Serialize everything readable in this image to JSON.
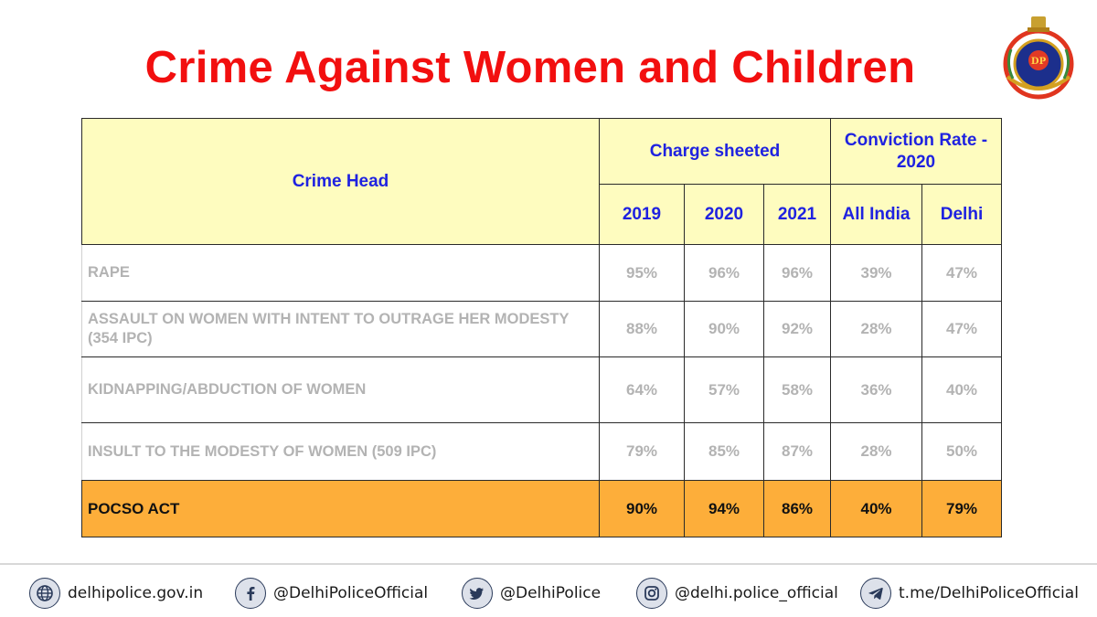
{
  "title": "Crime Against Women and Children",
  "table": {
    "header": {
      "crime_head": "Crime Head",
      "charge_sheeted": "Charge sheeted",
      "conviction_rate": "Conviction Rate - 2020",
      "years": [
        "2019",
        "2020",
        "2021"
      ],
      "conviction_cols": [
        "All India",
        "Delhi"
      ]
    },
    "rows": [
      {
        "crime": "RAPE",
        "values": [
          "95%",
          "96%",
          "96%",
          "39%",
          "47%"
        ]
      },
      {
        "crime": "ASSAULT ON WOMEN WITH INTENT TO OUTRAGE HER MODESTY (354 IPC)",
        "values": [
          "88%",
          "90%",
          "92%",
          "28%",
          "47%"
        ]
      },
      {
        "crime": "KIDNAPPING/ABDUCTION OF WOMEN",
        "values": [
          "64%",
          "57%",
          "58%",
          "36%",
          "40%"
        ]
      },
      {
        "crime": "INSULT TO THE MODESTY OF WOMEN (509 IPC)",
        "values": [
          "79%",
          "85%",
          "87%",
          "28%",
          "50%"
        ]
      }
    ],
    "highlight_row": {
      "crime": "POCSO ACT",
      "values": [
        "90%",
        "94%",
        "86%",
        "40%",
        "79%"
      ]
    }
  },
  "footer": {
    "website": "delhipolice.gov.in",
    "facebook": "@DelhiPoliceOfficial",
    "twitter": "@DelhiPolice",
    "instagram": "@delhi.police_official",
    "telegram": "t.me/DelhiPoliceOfficial"
  },
  "colors": {
    "title": "#f20f0f",
    "header_bg": "#fefcbf",
    "header_text": "#1f22e0",
    "highlight_bg": "#fdae3a"
  }
}
